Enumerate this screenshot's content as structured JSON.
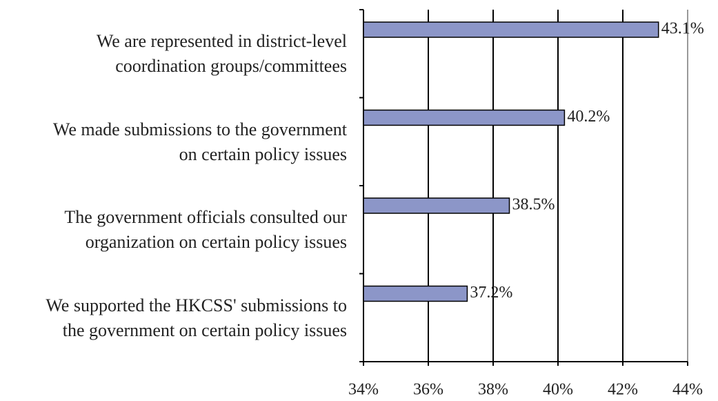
{
  "chart_data": {
    "type": "barh",
    "categories": [
      "We are represented in district-level\ncoordination groups/committees",
      "We made submissions to the government\non certain policy issues",
      "The government officials consulted our\norganization on certain policy issues",
      "We supported the HKCSS' submissions to\nthe government on certain policy issues"
    ],
    "values": [
      43.1,
      40.2,
      38.5,
      37.2
    ],
    "value_labels": [
      "43.1%",
      "40.2%",
      "38.5%",
      "37.2%"
    ],
    "color": "#8c96c8",
    "xlim": [
      34,
      44
    ],
    "xticks": [
      {
        "value": 34,
        "label": "34%"
      },
      {
        "value": 36,
        "label": "36%"
      },
      {
        "value": 38,
        "label": "38%"
      },
      {
        "value": 40,
        "label": "40%"
      },
      {
        "value": 42,
        "label": "42%"
      },
      {
        "value": 44,
        "label": "44%"
      }
    ],
    "grid": true
  }
}
